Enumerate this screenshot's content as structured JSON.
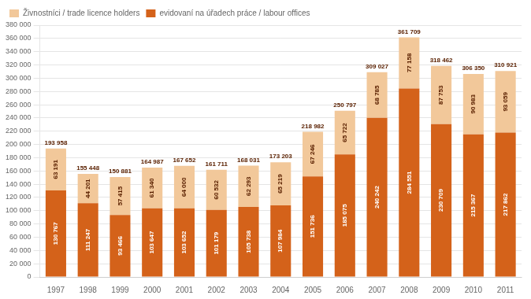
{
  "chart_data": {
    "type": "bar",
    "stacked": true,
    "categories": [
      "1997",
      "1998",
      "1999",
      "2000",
      "2001",
      "2002",
      "2003",
      "2004",
      "2005",
      "2006",
      "2007",
      "2008",
      "2009",
      "2010",
      "2011"
    ],
    "series": [
      {
        "name": "evidovaní na úřadech práce / labour offices",
        "color": "#D4621A",
        "values": [
          130767,
          111247,
          93466,
          103647,
          103652,
          101179,
          105738,
          107984,
          151736,
          185075,
          240242,
          284551,
          230709,
          215367,
          217862
        ],
        "value_labels": [
          "130 767",
          "111 247",
          "93 466",
          "103 647",
          "103 652",
          "101 179",
          "105 738",
          "107 984",
          "151 736",
          "185 075",
          "240 242",
          "284 551",
          "230 709",
          "215 367",
          "217 862"
        ]
      },
      {
        "name": "Živnostníci / trade licence holders",
        "color": "#F2C89A",
        "values": [
          63191,
          44201,
          57415,
          61340,
          64000,
          60532,
          62293,
          65219,
          67246,
          65722,
          68785,
          77158,
          87753,
          90983,
          93059
        ],
        "value_labels": [
          "63 191",
          "44 201",
          "57 415",
          "61 340",
          "64 000",
          "60 532",
          "62 293",
          "65 219",
          "67 246",
          "65 722",
          "68 785",
          "77 158",
          "87 753",
          "90 983",
          "93 059"
        ]
      }
    ],
    "totals": [
      193958,
      155448,
      150881,
      164987,
      167652,
      161711,
      168031,
      173203,
      218982,
      250797,
      309027,
      361709,
      318462,
      306350,
      310921
    ],
    "total_labels": [
      "193 958",
      "155 448",
      "150 881",
      "164 987",
      "167 652",
      "161 711",
      "168 031",
      "173 203",
      "218 982",
      "250 797",
      "309 027",
      "361 709",
      "318 462",
      "306 350",
      "310 921"
    ],
    "ylim": [
      0,
      380000
    ],
    "yticks": [
      0,
      {
        "value": 20000,
        "label": "20 000"
      },
      {
        "value": 40000,
        "label": "40 000"
      },
      {
        "value": 60000,
        "label": "60 000"
      },
      {
        "value": 80000,
        "label": "80 000"
      },
      {
        "value": 100000,
        "label": "100 000"
      },
      {
        "value": 120000,
        "label": "120 000"
      },
      {
        "value": 140000,
        "label": "140 000"
      },
      {
        "value": 160000,
        "label": "160 000"
      },
      {
        "value": 180000,
        "label": "180 000"
      },
      {
        "value": 200000,
        "label": "200 000"
      },
      {
        "value": 220000,
        "label": "220 000"
      },
      {
        "value": 240000,
        "label": "240 000"
      },
      {
        "value": 260000,
        "label": "260 000"
      },
      {
        "value": 280000,
        "label": "280 000"
      },
      {
        "value": 300000,
        "label": "300 000"
      },
      {
        "value": 320000,
        "label": "320 000"
      },
      {
        "value": 340000,
        "label": "340 000"
      },
      {
        "value": 360000,
        "label": "360 000"
      },
      {
        "value": 380000,
        "label": "380 000"
      }
    ],
    "grid": true,
    "legend": "upper left",
    "data_labels": true
  }
}
